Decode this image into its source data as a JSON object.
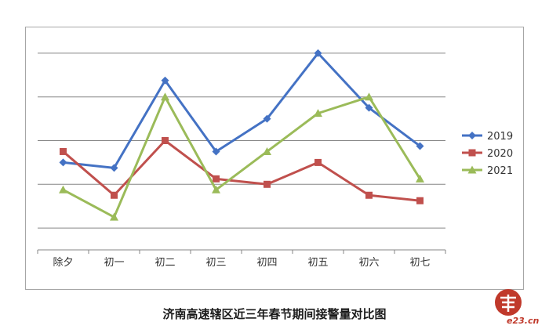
{
  "chart_data": {
    "type": "line",
    "title": "",
    "caption": "济南高速辖区近三年春节期间接警量对比图",
    "categories": [
      "除夕",
      "初一",
      "初二",
      "初三",
      "初四",
      "初五",
      "初六",
      "初七"
    ],
    "series": [
      {
        "name": "2019",
        "color": "#4472c4",
        "marker": "diamond",
        "values": [
          6,
          5.5,
          13.5,
          7,
          10,
          16,
          11,
          7.5
        ]
      },
      {
        "name": "2020",
        "color": "#c0504d",
        "marker": "square",
        "values": [
          7,
          3,
          8,
          4.5,
          4,
          6,
          3,
          2.5
        ]
      },
      {
        "name": "2021",
        "color": "#9bbb59",
        "marker": "triangle",
        "values": [
          3.5,
          1,
          12,
          3.5,
          7,
          10.5,
          12,
          4.5
        ]
      }
    ],
    "ylim": [
      -2,
      18
    ],
    "y_gridlines": [
      0,
      4,
      8,
      12,
      16
    ],
    "y_tick_labels_shown": false,
    "grid": true,
    "legend": "right"
  },
  "watermark": {
    "text": "e23.cn"
  }
}
